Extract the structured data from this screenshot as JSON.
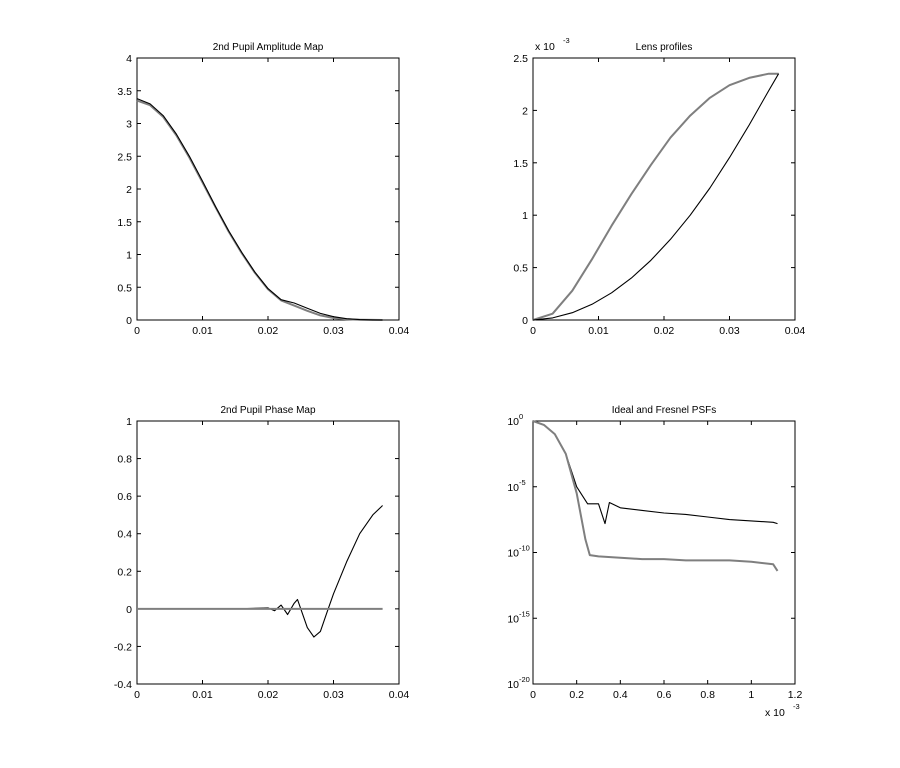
{
  "chart_data": [
    {
      "type": "line",
      "title": "2nd Pupil Amplitude Map",
      "xlim": [
        0,
        0.04
      ],
      "ylim": [
        0,
        4
      ],
      "xticks": [
        "0",
        "0.01",
        "0.02",
        "0.03",
        "0.04"
      ],
      "yticks": [
        "0",
        "0.5",
        "1",
        "1.5",
        "2",
        "2.5",
        "3",
        "3.5",
        "4"
      ],
      "grid": false,
      "series": [
        {
          "color": "#7f7f7f",
          "x": [
            0,
            0.002,
            0.004,
            0.006,
            0.008,
            0.01,
            0.012,
            0.014,
            0.016,
            0.018,
            0.02,
            0.022,
            0.024,
            0.026,
            0.028,
            0.03,
            0.032,
            0.034,
            0.036,
            0.0375
          ],
          "y": [
            3.35,
            3.28,
            3.1,
            2.82,
            2.48,
            2.1,
            1.72,
            1.35,
            1.02,
            0.72,
            0.47,
            0.3,
            0.22,
            0.14,
            0.07,
            0.03,
            0.01,
            0.004,
            0.001,
            0.0
          ]
        },
        {
          "color": "#000000",
          "x": [
            0,
            0.002,
            0.004,
            0.006,
            0.008,
            0.01,
            0.012,
            0.014,
            0.016,
            0.018,
            0.02,
            0.022,
            0.024,
            0.026,
            0.028,
            0.03,
            0.032,
            0.034,
            0.036,
            0.0375
          ],
          "y": [
            3.38,
            3.3,
            3.12,
            2.84,
            2.5,
            2.12,
            1.73,
            1.36,
            1.03,
            0.73,
            0.48,
            0.31,
            0.26,
            0.18,
            0.1,
            0.05,
            0.02,
            0.006,
            0.002,
            0.0
          ]
        }
      ]
    },
    {
      "type": "line",
      "title": "Lens profiles",
      "xlim": [
        0,
        0.04
      ],
      "ylim": [
        0,
        2.5
      ],
      "xticks": [
        "0",
        "0.01",
        "0.02",
        "0.03",
        "0.04"
      ],
      "yticks": [
        "0",
        "0.5",
        "1",
        "1.5",
        "2",
        "2.5"
      ],
      "y_multiplier": "x 10",
      "y_multiplier_exp": "-3",
      "grid": false,
      "series": [
        {
          "color": "#7f7f7f",
          "x": [
            0,
            0.003,
            0.006,
            0.009,
            0.012,
            0.015,
            0.018,
            0.021,
            0.024,
            0.027,
            0.03,
            0.033,
            0.036,
            0.0375
          ],
          "y": [
            0,
            0.06,
            0.28,
            0.58,
            0.9,
            1.2,
            1.48,
            1.74,
            1.95,
            2.12,
            2.24,
            2.31,
            2.35,
            2.35
          ]
        },
        {
          "color": "#000000",
          "x": [
            0,
            0.003,
            0.006,
            0.009,
            0.012,
            0.015,
            0.018,
            0.021,
            0.024,
            0.027,
            0.03,
            0.033,
            0.036,
            0.0375
          ],
          "y": [
            0,
            0.02,
            0.07,
            0.15,
            0.26,
            0.4,
            0.57,
            0.77,
            1.0,
            1.26,
            1.55,
            1.86,
            2.19,
            2.35
          ]
        }
      ]
    },
    {
      "type": "line",
      "title": "2nd Pupil Phase Map",
      "xlim": [
        0,
        0.04
      ],
      "ylim": [
        -0.4,
        1
      ],
      "xticks": [
        "0",
        "0.01",
        "0.02",
        "0.03",
        "0.04"
      ],
      "yticks": [
        "-0.4",
        "-0.2",
        "0",
        "0.2",
        "0.4",
        "0.6",
        "0.8",
        "1"
      ],
      "grid": false,
      "series": [
        {
          "color": "#000000",
          "x": [
            0,
            0.005,
            0.01,
            0.015,
            0.02,
            0.021,
            0.022,
            0.023,
            0.024,
            0.0245,
            0.025,
            0.026,
            0.027,
            0.028,
            0.029,
            0.03,
            0.032,
            0.034,
            0.036,
            0.0375
          ],
          "y": [
            0,
            0,
            0,
            0,
            0.005,
            -0.01,
            0.02,
            -0.03,
            0.03,
            0.05,
            0.0,
            -0.1,
            -0.15,
            -0.12,
            -0.02,
            0.08,
            0.25,
            0.4,
            0.5,
            0.55
          ]
        },
        {
          "color": "#7f7f7f",
          "x": [
            0,
            0.0375
          ],
          "y": [
            0,
            0
          ]
        }
      ]
    },
    {
      "type": "line",
      "title": "Ideal and Fresnel PSFs",
      "xlim": [
        0,
        1.2
      ],
      "ylim": [
        -20,
        0
      ],
      "y_scale": "log",
      "xticks": [
        "0",
        "0.2",
        "0.4",
        "0.6",
        "0.8",
        "1",
        "1.2"
      ],
      "yticks": [
        "10",
        "10",
        "10",
        "10",
        "10"
      ],
      "ytick_exponents": [
        "-20",
        "-15",
        "-10",
        "-5",
        "0"
      ],
      "x_multiplier": "x 10",
      "x_multiplier_exp": "-3",
      "grid": false,
      "series": [
        {
          "color": "#000000",
          "x": [
            0,
            0.05,
            0.1,
            0.15,
            0.2,
            0.25,
            0.3,
            0.33,
            0.35,
            0.4,
            0.5,
            0.6,
            0.7,
            0.8,
            0.9,
            1.0,
            1.1,
            1.12
          ],
          "y": [
            0,
            -0.3,
            -1.0,
            -2.5,
            -5.0,
            -6.3,
            -6.3,
            -7.8,
            -6.2,
            -6.6,
            -6.8,
            -7.0,
            -7.1,
            -7.3,
            -7.5,
            -7.6,
            -7.7,
            -7.8
          ]
        },
        {
          "color": "#7f7f7f",
          "x": [
            0,
            0.05,
            0.1,
            0.15,
            0.2,
            0.24,
            0.26,
            0.3,
            0.4,
            0.5,
            0.6,
            0.7,
            0.8,
            0.9,
            1.0,
            1.1,
            1.12
          ],
          "y": [
            0,
            -0.3,
            -1.0,
            -2.5,
            -5.5,
            -9.0,
            -10.2,
            -10.3,
            -10.4,
            -10.5,
            -10.5,
            -10.6,
            -10.6,
            -10.6,
            -10.7,
            -10.9,
            -11.4
          ]
        }
      ]
    }
  ]
}
